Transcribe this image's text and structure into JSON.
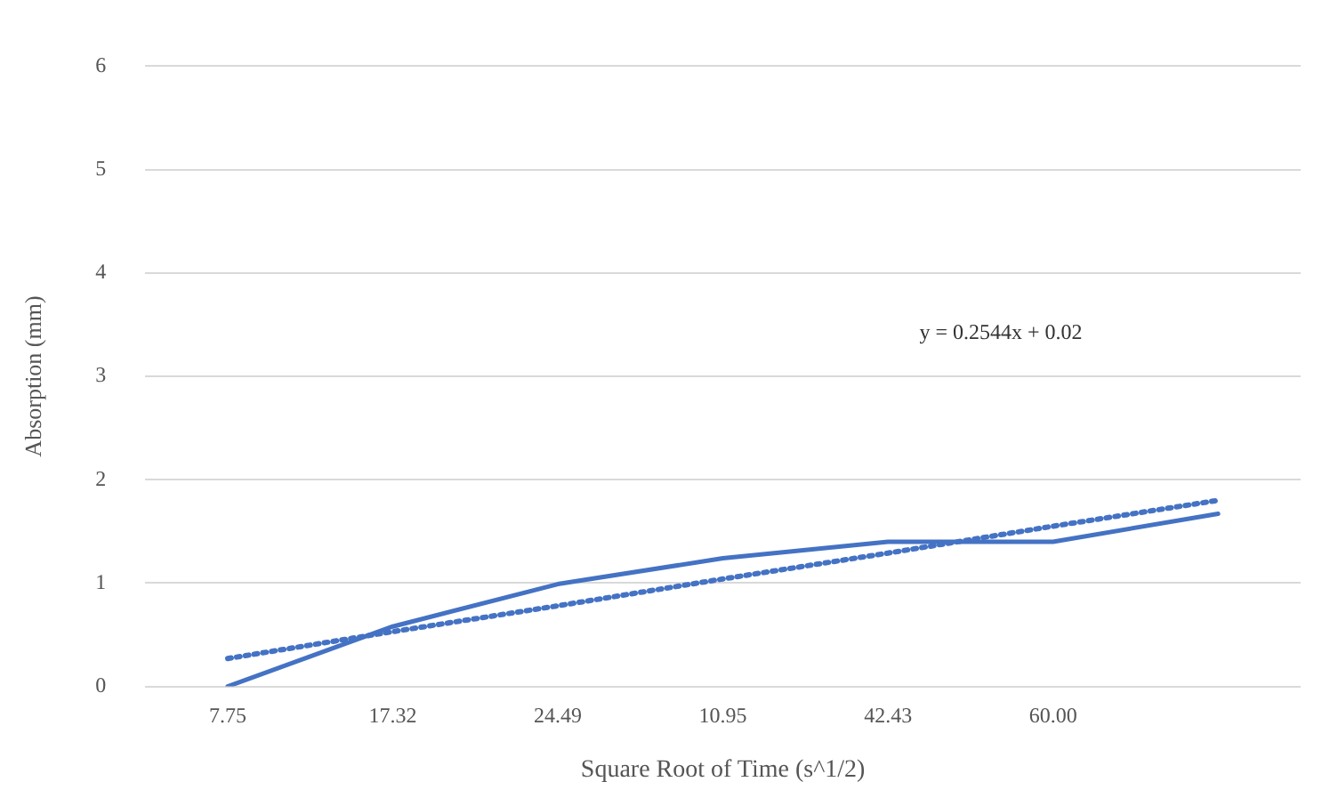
{
  "chart_data": {
    "type": "line",
    "xlabel": "Square Root of Time (s^1/2)",
    "ylabel": "Absorption (mm)",
    "categories": [
      "7.75",
      "17.32",
      "24.49",
      "10.95",
      "42.43",
      "60.00",
      null
    ],
    "series": [
      {
        "color": "#4472c4",
        "values": [
          0,
          0.58,
          0.99,
          1.24,
          1.4,
          1.4,
          1.67
        ],
        "line_style": "solid"
      },
      {
        "type": "line",
        "color": "#4472c4",
        "values": [
          0.27,
          0.53,
          0.78,
          1.04,
          1.29,
          1.55,
          1.8
        ],
        "line_style": "dotted"
      }
    ],
    "ylim": [
      0,
      6
    ],
    "yticks": [
      0,
      1,
      2,
      3,
      4,
      5,
      6
    ],
    "grid": "y",
    "legend": false,
    "marker": "none",
    "annotations": [
      "y = 0.2544x + 0.02"
    ]
  }
}
